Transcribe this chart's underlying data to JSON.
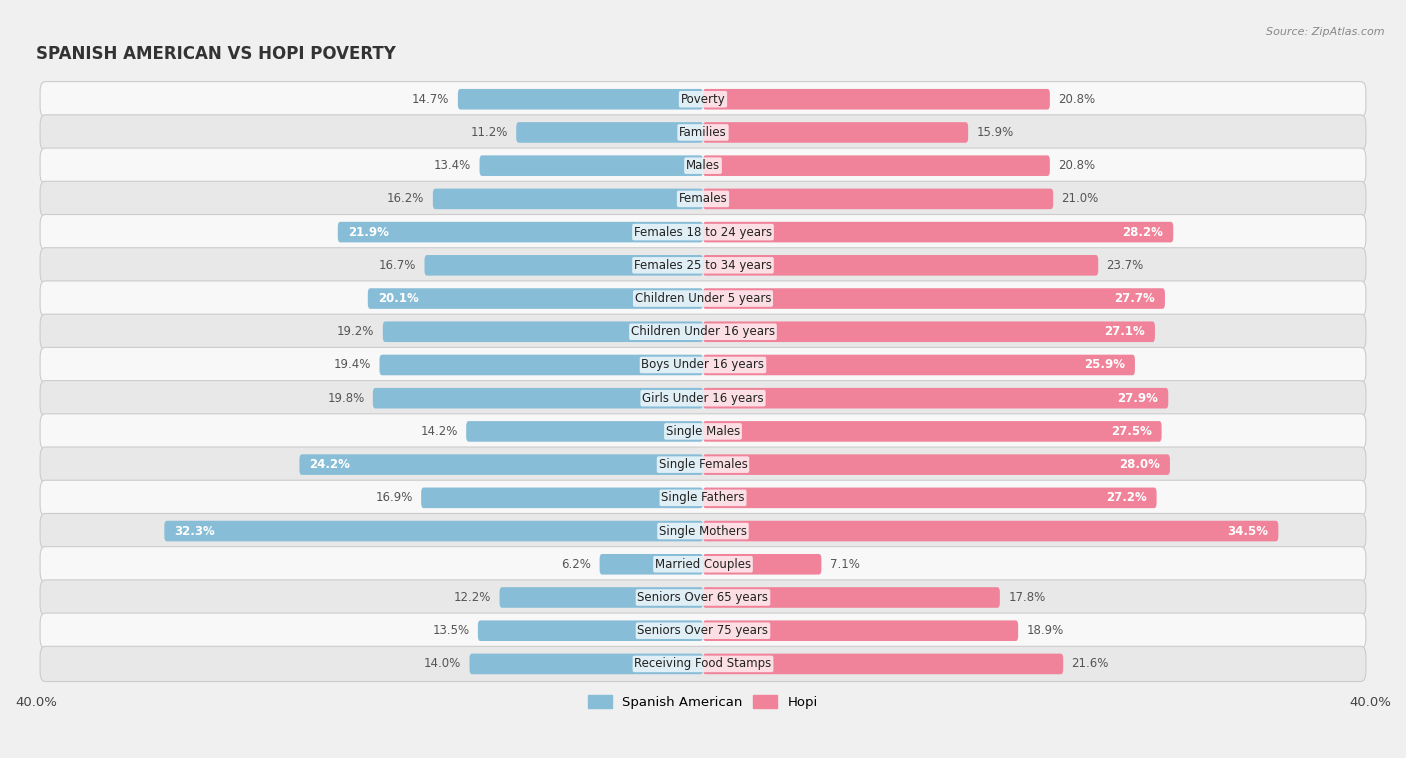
{
  "title": "SPANISH AMERICAN VS HOPI POVERTY",
  "source": "Source: ZipAtlas.com",
  "categories": [
    "Poverty",
    "Families",
    "Males",
    "Females",
    "Females 18 to 24 years",
    "Females 25 to 34 years",
    "Children Under 5 years",
    "Children Under 16 years",
    "Boys Under 16 years",
    "Girls Under 16 years",
    "Single Males",
    "Single Females",
    "Single Fathers",
    "Single Mothers",
    "Married Couples",
    "Seniors Over 65 years",
    "Seniors Over 75 years",
    "Receiving Food Stamps"
  ],
  "spanish_american": [
    14.7,
    11.2,
    13.4,
    16.2,
    21.9,
    16.7,
    20.1,
    19.2,
    19.4,
    19.8,
    14.2,
    24.2,
    16.9,
    32.3,
    6.2,
    12.2,
    13.5,
    14.0
  ],
  "hopi": [
    20.8,
    15.9,
    20.8,
    21.0,
    28.2,
    23.7,
    27.7,
    27.1,
    25.9,
    27.9,
    27.5,
    28.0,
    27.2,
    34.5,
    7.1,
    17.8,
    18.9,
    21.6
  ],
  "spanish_color": "#88bdd8",
  "hopi_color": "#f0839a",
  "spanish_inside_label_color": "#ffffff",
  "hopi_inside_label_color": "#ffffff",
  "outside_label_color": "#555555",
  "bg_color": "#f0f0f0",
  "row_color_odd": "#e8e8e8",
  "row_color_even": "#f8f8f8",
  "axis_limit": 40.0,
  "bar_height": 0.62,
  "label_fontsize": 8.5,
  "cat_fontsize": 8.5,
  "title_fontsize": 12,
  "source_fontsize": 8,
  "legend_label_spanish": "Spanish American",
  "legend_label_hopi": "Hopi",
  "inside_label_threshold_sp": 20.0,
  "inside_label_threshold_hp": 24.0
}
